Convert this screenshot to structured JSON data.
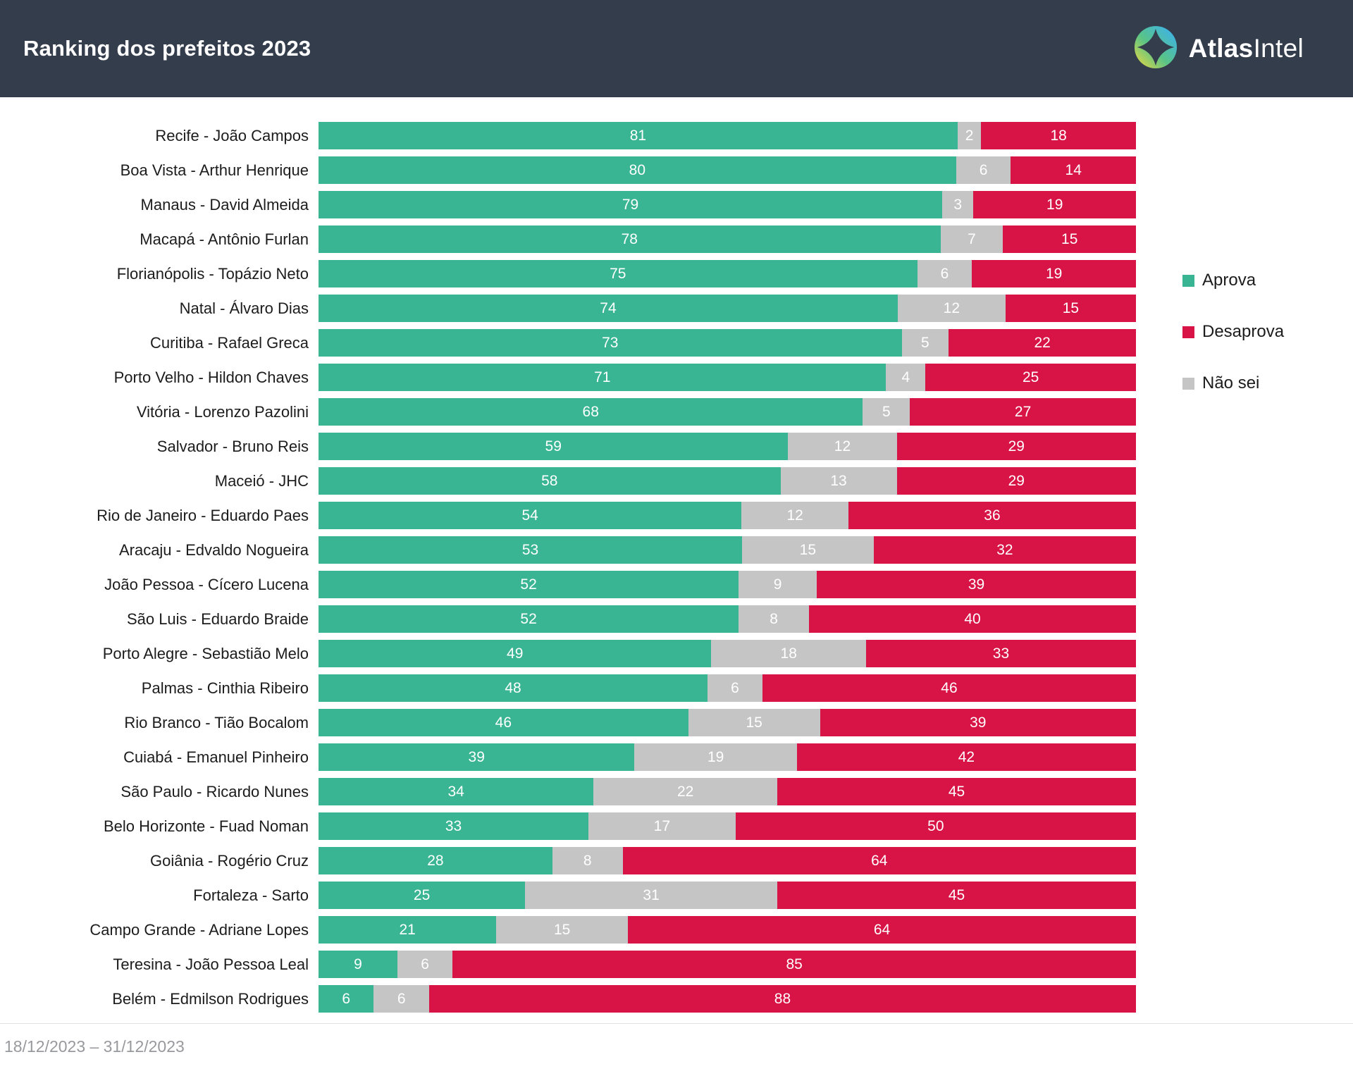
{
  "header": {
    "title": "Ranking dos prefeitos 2023",
    "brand": {
      "logo_icon": "atlasintel-compass-gradient-circle",
      "name_bold": "Atlas",
      "name_regular": "Intel"
    }
  },
  "colors": {
    "header_background": "#343D4C",
    "aprova_green": "#39B593",
    "desaprova_red": "#D81345",
    "nao_sei_gray": "#C5C5C5",
    "bar_value_text": "#FFFFFF",
    "category_text": "#1C1C1C",
    "footer_text": "#98999D"
  },
  "legend": [
    {
      "label": "Aprova",
      "color": "#39B593"
    },
    {
      "label": "Desaprova",
      "color": "#D81345"
    },
    {
      "label": "Não sei",
      "color": "#C5C5C5"
    }
  ],
  "footer": {
    "date_range": "18/12/2023 – 31/12/2023"
  },
  "chart_data": {
    "type": "bar",
    "stacked": true,
    "percent_stacked": true,
    "orientation": "horizontal",
    "title": "Ranking dos prefeitos 2023",
    "x_range": [
      0,
      100
    ],
    "unit": "%",
    "value_label_position": "inside-center",
    "legend_position": "right",
    "grid": false,
    "categories": [
      "Recife - João Campos",
      "Boa Vista - Arthur Henrique",
      "Manaus - David Almeida",
      "Macapá - Antônio Furlan",
      "Florianópolis - Topázio Neto",
      "Natal - Álvaro Dias",
      "Curitiba - Rafael Greca",
      "Porto Velho - Hildon Chaves",
      "Vitória - Lorenzo Pazolini",
      "Salvador - Bruno Reis",
      "Maceió - JHC",
      "Rio de Janeiro - Eduardo Paes",
      "Aracaju - Edvaldo Nogueira",
      "João Pessoa - Cícero Lucena",
      "São Luis - Eduardo Braide",
      "Porto Alegre - Sebastião Melo",
      "Palmas - Cinthia Ribeiro",
      "Rio Branco - Tião Bocalom",
      "Cuiabá - Emanuel Pinheiro",
      "São Paulo - Ricardo Nunes",
      "Belo Horizonte - Fuad Noman",
      "Goiânia - Rogério Cruz",
      "Fortaleza - Sarto",
      "Campo Grande - Adriane Lopes",
      "Teresina - João Pessoa Leal",
      "Belém - Edmilson Rodrigues"
    ],
    "series": [
      {
        "name": "Aprova",
        "key": "aprova",
        "color": "#39B593",
        "values": [
          81,
          80,
          79,
          78,
          75,
          74,
          73,
          71,
          68,
          59,
          58,
          54,
          53,
          52,
          52,
          49,
          48,
          46,
          39,
          34,
          33,
          28,
          25,
          21,
          9,
          6
        ]
      },
      {
        "name": "Não sei",
        "key": "nao-sei",
        "color": "#C5C5C5",
        "values": [
          2,
          6,
          3,
          7,
          6,
          12,
          5,
          4,
          5,
          12,
          13,
          12,
          15,
          9,
          8,
          18,
          6,
          15,
          19,
          22,
          17,
          8,
          31,
          15,
          6,
          6
        ]
      },
      {
        "name": "Desaprova",
        "key": "desaprova",
        "color": "#D81345",
        "values": [
          18,
          14,
          19,
          15,
          19,
          15,
          22,
          25,
          27,
          29,
          29,
          36,
          32,
          39,
          40,
          33,
          46,
          39,
          42,
          45,
          50,
          64,
          45,
          64,
          85,
          88
        ]
      }
    ]
  }
}
